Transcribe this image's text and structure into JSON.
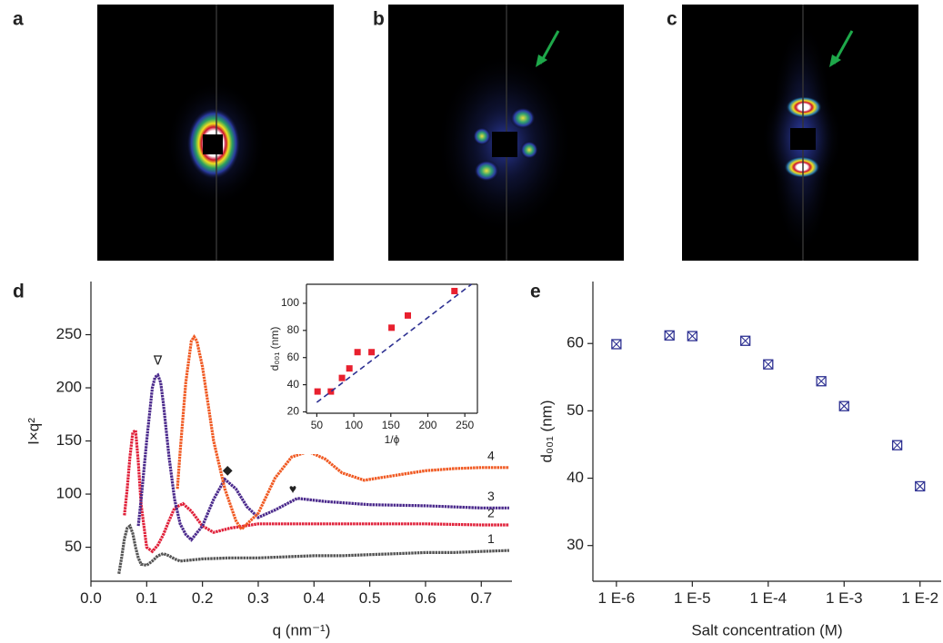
{
  "panels": [
    "a",
    "b",
    "c",
    "d",
    "e"
  ],
  "chart_data": [
    {
      "type": "line",
      "xlabel": "q (nm⁻¹)",
      "ylabel": "I×q²",
      "xlim": [
        0,
        0.755
      ],
      "ylim": [
        18,
        300
      ],
      "xticks": [
        {
          "value": 0,
          "label": "0.0"
        },
        0.1,
        0.2,
        0.3,
        0.4,
        0.5,
        0.6,
        0.7
      ],
      "yticks": [
        50,
        100,
        150,
        200,
        250
      ],
      "series": [
        {
          "name": "1",
          "color": "#555555",
          "x": [
            0.05,
            0.055,
            0.06,
            0.065,
            0.07,
            0.075,
            0.08,
            0.085,
            0.09,
            0.1,
            0.11,
            0.12,
            0.13,
            0.14,
            0.15,
            0.16,
            0.18,
            0.2,
            0.25,
            0.3,
            0.35,
            0.4,
            0.45,
            0.5,
            0.55,
            0.6,
            0.65,
            0.7,
            0.75
          ],
          "values": [
            25,
            40,
            58,
            68,
            70,
            63,
            50,
            40,
            34,
            33,
            37,
            42,
            44,
            42,
            39,
            37,
            38,
            39,
            40,
            40,
            41,
            42,
            42,
            43,
            44,
            45,
            45,
            46,
            47
          ]
        },
        {
          "name": "2",
          "color": "#e0213a",
          "x": [
            0.06,
            0.065,
            0.07,
            0.075,
            0.08,
            0.085,
            0.09,
            0.1,
            0.11,
            0.12,
            0.13,
            0.14,
            0.15,
            0.165,
            0.18,
            0.2,
            0.22,
            0.25,
            0.3,
            0.35,
            0.4,
            0.5,
            0.6,
            0.7,
            0.75
          ],
          "values": [
            80,
            105,
            135,
            158,
            160,
            130,
            90,
            50,
            46,
            52,
            62,
            75,
            87,
            91,
            84,
            70,
            64,
            68,
            72,
            72,
            72,
            72,
            72,
            71,
            71
          ]
        },
        {
          "name": "3",
          "color": "#4b2a8c",
          "x": [
            0.085,
            0.09,
            0.1,
            0.11,
            0.115,
            0.12,
            0.125,
            0.13,
            0.14,
            0.15,
            0.16,
            0.17,
            0.18,
            0.2,
            0.22,
            0.24,
            0.26,
            0.28,
            0.3,
            0.33,
            0.37,
            0.42,
            0.5,
            0.6,
            0.7,
            0.75
          ],
          "values": [
            70,
            95,
            150,
            200,
            210,
            212,
            205,
            185,
            135,
            95,
            72,
            62,
            57,
            70,
            95,
            114,
            105,
            88,
            78,
            85,
            96,
            93,
            90,
            89,
            87,
            87
          ]
        },
        {
          "name": "4",
          "color": "#f05a23",
          "x": [
            0.155,
            0.16,
            0.17,
            0.18,
            0.185,
            0.19,
            0.2,
            0.21,
            0.22,
            0.24,
            0.26,
            0.27,
            0.3,
            0.33,
            0.36,
            0.39,
            0.42,
            0.45,
            0.49,
            0.55,
            0.6,
            0.65,
            0.7,
            0.75
          ],
          "values": [
            105,
            140,
            205,
            244,
            248,
            244,
            220,
            185,
            150,
            105,
            75,
            67,
            82,
            115,
            135,
            140,
            133,
            120,
            113,
            118,
            122,
            124,
            125,
            125
          ]
        }
      ],
      "annotations": [
        {
          "text": "∇",
          "x": 0.12,
          "y": 225
        },
        {
          "text": "◆",
          "x": 0.245,
          "y": 122
        },
        {
          "text": "♥",
          "x": 0.362,
          "y": 104
        }
      ],
      "inset": {
        "type": "scatter",
        "box": true,
        "xlabel": "1/ϕ",
        "ylabel": "d₀₀₁ (nm)",
        "xlim": [
          36,
          267
        ],
        "ylim": [
          19,
          114
        ],
        "xticks": [
          50,
          100,
          150,
          200,
          250
        ],
        "yticks": [
          20,
          40,
          60,
          80,
          100
        ],
        "series": [
          {
            "color": "#e8202e",
            "marker": "square",
            "x": [
              51,
              69,
              84,
              94,
              105,
              124,
              151,
              173,
              236
            ],
            "values": [
              35,
              35,
              45,
              52,
              64,
              64,
              82,
              91,
              109
            ]
          }
        ],
        "fit_line": {
          "color": "#2e3192",
          "x": [
            50,
            259
          ],
          "values": [
            27,
            114
          ]
        }
      }
    },
    {
      "type": "scatter",
      "xlabel": "Salt concentration (M)",
      "ylabel": "d₀₀₁ (nm)",
      "xscale": "log",
      "xlim": [
        4.9e-07,
        0.019
      ],
      "ylim": [
        24.7,
        69.2
      ],
      "xticks": [
        {
          "value": 1e-06,
          "label": "1 E-6"
        },
        {
          "value": 1e-05,
          "label": "1 E-5"
        },
        {
          "value": 0.0001,
          "label": "1 E-4"
        },
        {
          "value": 0.001,
          "label": "1 E-3"
        },
        {
          "value": 0.01,
          "label": "1 E-2"
        }
      ],
      "yticks": [
        30,
        40,
        50,
        60
      ],
      "series": [
        {
          "color": "#2e3192",
          "marker": "crossed-square",
          "x": [
            1e-06,
            5e-06,
            1e-05,
            5e-05,
            0.0001,
            0.0005,
            0.001,
            0.005,
            0.01
          ],
          "values": [
            59.9,
            61.2,
            61.1,
            60.4,
            56.9,
            54.4,
            50.7,
            44.9,
            38.8
          ]
        }
      ]
    }
  ]
}
